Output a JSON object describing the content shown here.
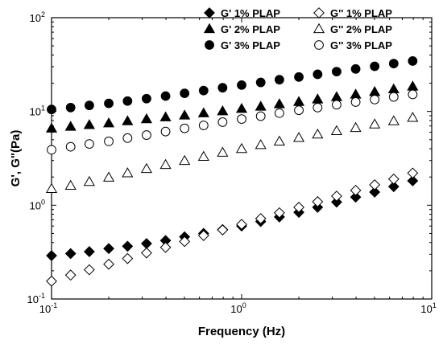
{
  "chart_data": {
    "type": "scatter",
    "title": "",
    "xlabel": "Frequency (Hz)",
    "ylabel": "G', G\"(Pa)",
    "xscale": "log",
    "yscale": "log",
    "xlim": [
      0.1,
      10
    ],
    "ylim": [
      0.1,
      100
    ],
    "x_ticks": [
      {
        "base": "10",
        "exp": "-1",
        "value": 0.1
      },
      {
        "base": "10",
        "exp": "0",
        "value": 1
      },
      {
        "base": "10",
        "exp": "1",
        "value": 10
      }
    ],
    "y_ticks": [
      {
        "base": "10",
        "exp": "-1",
        "value": 0.1
      },
      {
        "base": "10",
        "exp": "0",
        "value": 1
      },
      {
        "base": "10",
        "exp": "1",
        "value": 10
      },
      {
        "base": "10",
        "exp": "2",
        "value": 100
      }
    ],
    "legend_position": "top-right",
    "grid": false,
    "x": [
      0.1,
      0.126,
      0.158,
      0.2,
      0.251,
      0.316,
      0.398,
      0.501,
      0.631,
      0.794,
      1.0,
      1.26,
      1.58,
      2.0,
      2.51,
      3.16,
      3.98,
      5.01,
      6.31,
      7.94
    ],
    "series": [
      {
        "name": "G' 1% PLAP",
        "marker": "diamond-filled",
        "values": [
          0.29,
          0.305,
          0.32,
          0.345,
          0.365,
          0.39,
          0.42,
          0.46,
          0.5,
          0.55,
          0.6,
          0.67,
          0.75,
          0.84,
          0.95,
          1.08,
          1.22,
          1.38,
          1.58,
          1.82
        ]
      },
      {
        "name": "G'' 1% PLAP",
        "marker": "diamond-open",
        "values": [
          0.155,
          0.18,
          0.205,
          0.235,
          0.27,
          0.31,
          0.355,
          0.41,
          0.475,
          0.545,
          0.625,
          0.72,
          0.83,
          0.95,
          1.09,
          1.25,
          1.44,
          1.65,
          1.9,
          2.2
        ]
      },
      {
        "name": "G' 2% PLAP",
        "marker": "triangle-filled",
        "values": [
          6.6,
          6.9,
          7.2,
          7.5,
          7.9,
          8.3,
          8.7,
          9.1,
          9.6,
          10.1,
          10.7,
          11.3,
          12.0,
          12.7,
          13.5,
          14.3,
          15.2,
          16.2,
          17.3,
          18.5
        ]
      },
      {
        "name": "G'' 2% PLAP",
        "marker": "triangle-open",
        "values": [
          1.5,
          1.62,
          1.78,
          1.98,
          2.2,
          2.45,
          2.7,
          2.98,
          3.3,
          3.65,
          4.0,
          4.4,
          4.8,
          5.25,
          5.7,
          6.2,
          6.7,
          7.3,
          7.9,
          8.6
        ]
      },
      {
        "name": "G' 3% PLAP",
        "marker": "circle-filled",
        "values": [
          10.5,
          11.0,
          11.6,
          12.2,
          12.9,
          13.7,
          14.6,
          15.6,
          16.7,
          17.9,
          19.1,
          20.4,
          21.8,
          23.3,
          24.9,
          26.6,
          28.4,
          30.3,
          32.4,
          34.5
        ]
      },
      {
        "name": "G'' 3% PLAP",
        "marker": "circle-open",
        "values": [
          3.9,
          4.2,
          4.5,
          4.8,
          5.2,
          5.6,
          6.1,
          6.6,
          7.1,
          7.7,
          8.3,
          8.9,
          9.6,
          10.3,
          11.0,
          11.8,
          12.6,
          13.4,
          14.3,
          15.2
        ]
      }
    ]
  }
}
